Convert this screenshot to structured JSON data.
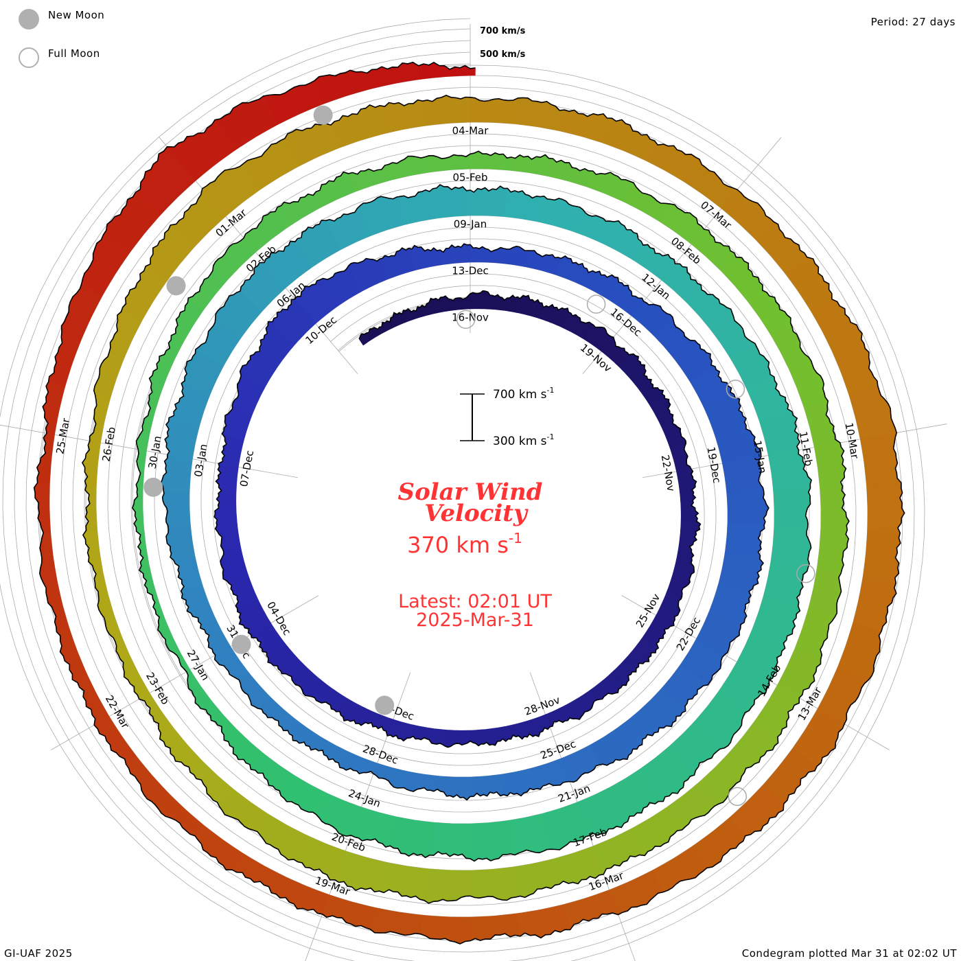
{
  "header": {
    "period": "Period: 27 days"
  },
  "legend": {
    "new_moon": "New Moon",
    "full_moon": "Full Moon"
  },
  "footer": {
    "credit": "GI-UAF 2025",
    "plotted": "Condegram plotted Mar 31 at 02:02 UT"
  },
  "center": {
    "title_line1": "Solar Wind",
    "title_line2": "Velocity",
    "current_value": "370 km s",
    "current_unit_sup": "-1",
    "latest": "Latest: 02:01 UT",
    "latest_date": "2025-Mar-31",
    "scale_top": "700 km s",
    "scale_bottom": "300 km s",
    "scale_sup": "-1"
  },
  "colors": {
    "text_accent": "#ff3333",
    "grid": "#aaaaaa",
    "moon": "#b0b0b0"
  },
  "chart_data": {
    "type": "condegram-spiral",
    "title": "Solar Wind Velocity",
    "period_days": 27,
    "y_unit": "km/s",
    "baseline_km_s": 300,
    "scale_range_km_s": [
      300,
      700
    ],
    "reference_labels": [
      "700 km/s",
      "500 km/s"
    ],
    "reference_levels_km_s": [
      400,
      500,
      600,
      700
    ],
    "t0_date": "2024-11-16",
    "series_start_day": -2.5,
    "series_end_day": 135.08,
    "sample_days": [
      -2.5,
      0,
      3,
      6,
      9,
      12,
      15,
      18,
      21,
      24,
      27,
      30,
      33,
      36,
      39,
      42,
      45,
      48,
      51,
      54,
      57,
      60,
      63,
      66,
      69,
      72,
      75,
      78,
      81,
      84,
      87,
      90,
      93,
      96,
      99,
      102,
      105,
      108,
      111,
      114,
      117,
      120,
      123,
      126,
      129,
      132,
      135.08
    ],
    "speed_km_s": [
      360,
      420,
      450,
      420,
      450,
      420,
      420,
      500,
      450,
      590,
      420,
      480,
      620,
      590,
      500,
      420,
      440,
      535,
      590,
      535,
      480,
      590,
      620,
      620,
      560,
      360,
      360,
      480,
      420,
      480,
      505,
      535,
      535,
      565,
      390,
      390,
      590,
      505,
      505,
      590,
      565,
      505,
      480,
      420,
      390,
      650,
      370
    ],
    "date_labels": [
      {
        "t": 0,
        "text": "16-Nov"
      },
      {
        "t": 3,
        "text": "19-Nov"
      },
      {
        "t": 6,
        "text": "22-Nov"
      },
      {
        "t": 9,
        "text": "25-Nov"
      },
      {
        "t": 12,
        "text": "28-Nov"
      },
      {
        "t": 15,
        "text": "01-Dec"
      },
      {
        "t": 18,
        "text": "04-Dec"
      },
      {
        "t": 21,
        "text": "07-Dec"
      },
      {
        "t": 24,
        "text": "10-Dec"
      },
      {
        "t": 27,
        "text": "13-Dec"
      },
      {
        "t": 30,
        "text": "16-Dec"
      },
      {
        "t": 33,
        "text": "19-Dec"
      },
      {
        "t": 36,
        "text": "22-Dec"
      },
      {
        "t": 39,
        "text": "25-Dec"
      },
      {
        "t": 42,
        "text": "28-Dec"
      },
      {
        "t": 45,
        "text": "31-Dec"
      },
      {
        "t": 48,
        "text": "03-Jan"
      },
      {
        "t": 51,
        "text": "06-Jan"
      },
      {
        "t": 54,
        "text": "09-Jan"
      },
      {
        "t": 57,
        "text": "12-Jan"
      },
      {
        "t": 60,
        "text": "15-Jan"
      },
      {
        "t": 66,
        "text": "21-Jan"
      },
      {
        "t": 69,
        "text": "24-Jan"
      },
      {
        "t": 72,
        "text": "27-Jan"
      },
      {
        "t": 75,
        "text": "30-Jan"
      },
      {
        "t": 78,
        "text": "02-Feb"
      },
      {
        "t": 81,
        "text": "05-Feb"
      },
      {
        "t": 84,
        "text": "08-Feb"
      },
      {
        "t": 87,
        "text": "11-Feb"
      },
      {
        "t": 90,
        "text": "14-Feb"
      },
      {
        "t": 93,
        "text": "17-Feb"
      },
      {
        "t": 96,
        "text": "20-Feb"
      },
      {
        "t": 99,
        "text": "23-Feb"
      },
      {
        "t": 102,
        "text": "26-Feb"
      },
      {
        "t": 105,
        "text": "01-Mar"
      },
      {
        "t": 108,
        "text": "04-Mar"
      },
      {
        "t": 111,
        "text": "07-Mar"
      },
      {
        "t": 114,
        "text": "10-Mar"
      },
      {
        "t": 117,
        "text": "13-Mar"
      },
      {
        "t": 120,
        "text": "16-Mar"
      },
      {
        "t": 123,
        "text": "19-Mar"
      },
      {
        "t": 126,
        "text": "22-Mar"
      },
      {
        "t": 129,
        "text": "25-Mar"
      }
    ],
    "new_moons_day": [
      15.26,
      44.94,
      74.53,
      104.03,
      133.46
    ],
    "full_moons_day": [
      -0.1,
      29.38,
      58.94,
      88.58,
      118.29
    ],
    "color_stops": [
      {
        "t": 0,
        "color": "#1a1058"
      },
      {
        "t": 20,
        "color": "#2a28b0"
      },
      {
        "t": 30,
        "color": "#2850c0"
      },
      {
        "t": 45,
        "color": "#3080c0"
      },
      {
        "t": 55,
        "color": "#30b0b0"
      },
      {
        "t": 70,
        "color": "#30c070"
      },
      {
        "t": 85,
        "color": "#70c030"
      },
      {
        "t": 100,
        "color": "#b0a818"
      },
      {
        "t": 115,
        "color": "#c07010"
      },
      {
        "t": 125,
        "color": "#c04010"
      },
      {
        "t": 135,
        "color": "#c01010"
      }
    ]
  }
}
